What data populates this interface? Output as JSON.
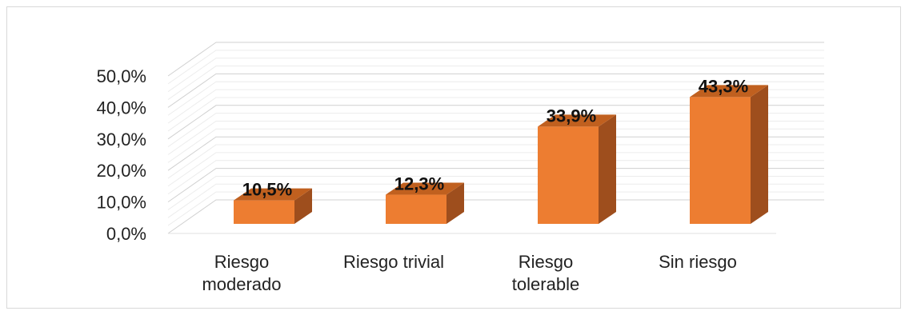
{
  "chart_data": {
    "type": "bar",
    "style": "3d-column",
    "categories": [
      [
        "Riesgo",
        "moderado"
      ],
      [
        "Riesgo trivial"
      ],
      [
        "Riesgo",
        "tolerable"
      ],
      [
        "Sin riesgo"
      ]
    ],
    "values": [
      10.5,
      12.3,
      33.9,
      43.3
    ],
    "data_labels": [
      "10,5%",
      "12,3%",
      "33,9%",
      "43,3%"
    ],
    "ylim": [
      0,
      50
    ],
    "y_ticks": [
      "0,0%",
      "10,0%",
      "20,0%",
      "30,0%",
      "40,0%",
      "50,0%"
    ],
    "grid": true,
    "colors": {
      "front": "#ED7D31",
      "side": "#9E4E1D",
      "top": "#C0601F",
      "grid": "#d9d9d9"
    }
  }
}
